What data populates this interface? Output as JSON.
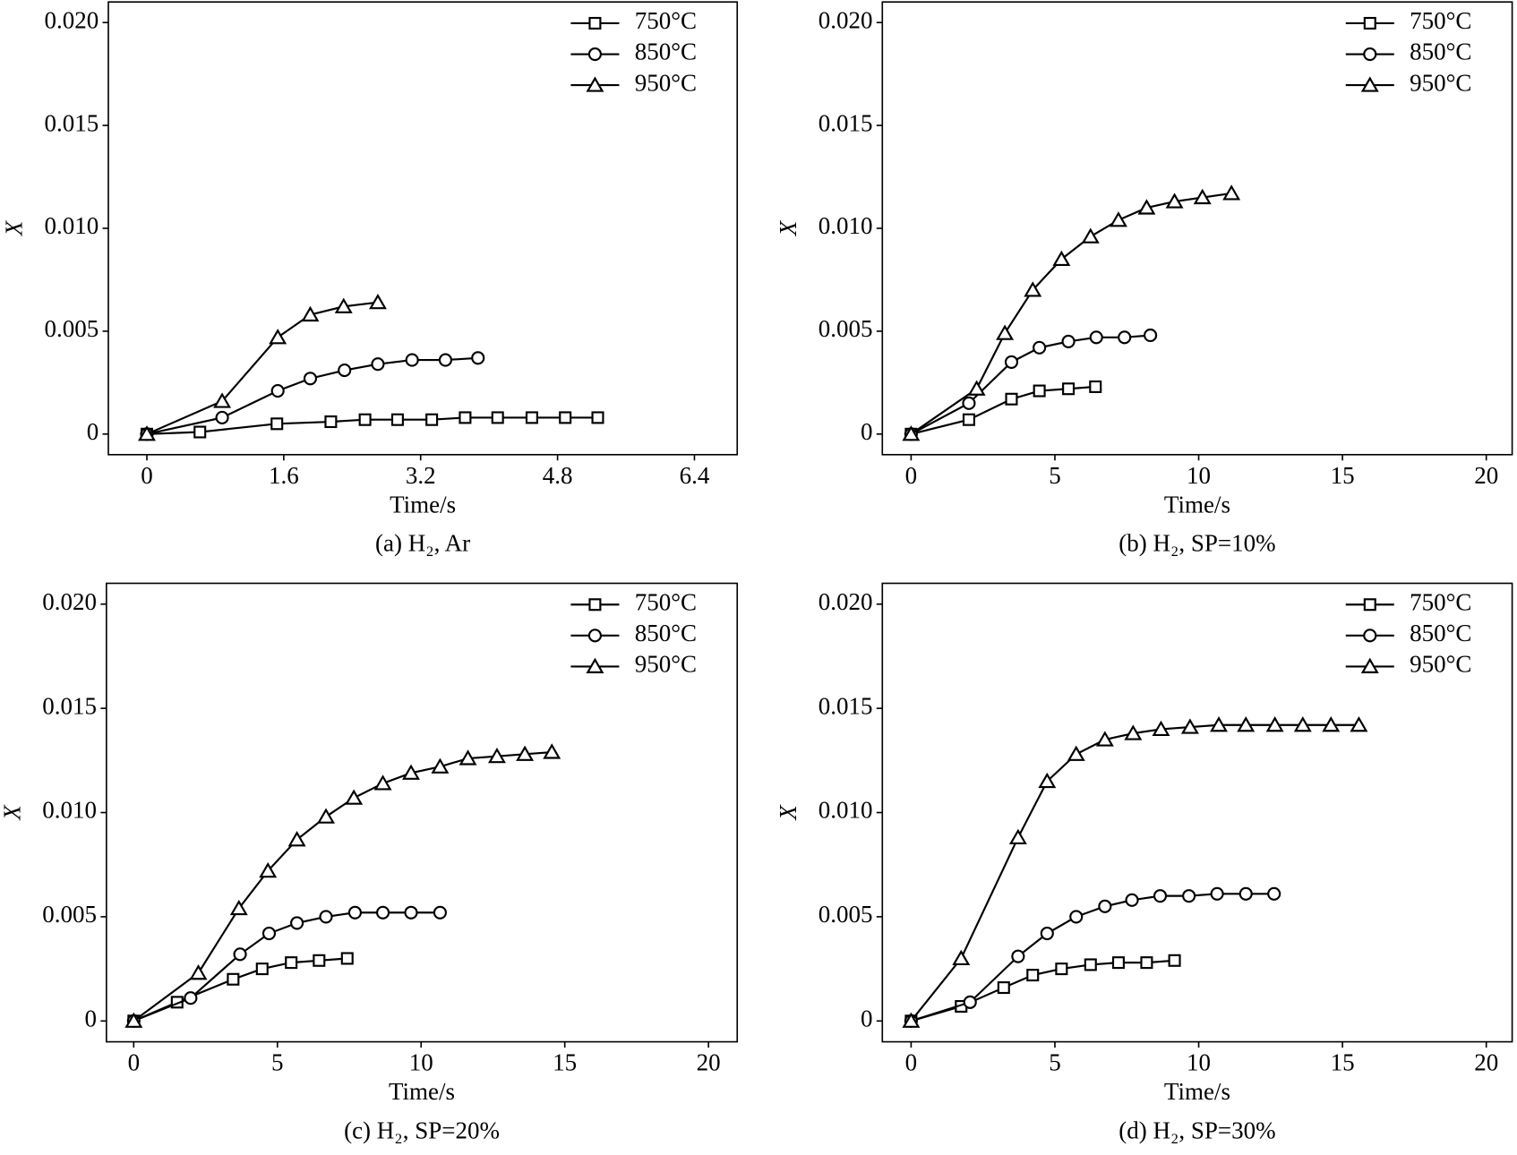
{
  "chart_data": [
    {
      "type": "line",
      "title": "(a) H₂, Ar",
      "x_label": "Time/s",
      "y_label": "X",
      "legend": "upper right",
      "xlim": [
        -0.45,
        6.9
      ],
      "xticks": [
        0,
        1.6,
        3.2,
        4.8,
        6.4
      ],
      "ylim": [
        -0.001,
        0.021
      ],
      "yticks": [
        0,
        0.005,
        {
          "value": 0.01,
          "label": "0.010"
        },
        0.015,
        {
          "value": 0.02,
          "label": "0.020"
        }
      ],
      "series": [
        {
          "name": "750°C",
          "color": "#000000",
          "marker": "square",
          "x": [
            0,
            0.62,
            1.52,
            2.15,
            2.55,
            2.93,
            3.33,
            3.72,
            4.1,
            4.5,
            4.89,
            5.27
          ],
          "values": [
            0,
            0.0001,
            0.0005,
            0.0006,
            0.0007,
            0.0007,
            0.0007,
            0.0008,
            0.0008,
            0.0008,
            0.0008,
            0.0008
          ]
        },
        {
          "name": "850°C",
          "color": "#000000",
          "marker": "circle",
          "x": [
            0,
            0.88,
            1.53,
            1.91,
            2.31,
            2.7,
            3.1,
            3.49,
            3.87
          ],
          "values": [
            0,
            0.0008,
            0.0021,
            0.0027,
            0.0031,
            0.0034,
            0.0036,
            0.0036,
            0.0037
          ]
        },
        {
          "name": "950°C",
          "color": "#000000",
          "marker": "triangle",
          "x": [
            0,
            0.88,
            1.53,
            1.91,
            2.3,
            2.7
          ],
          "values": [
            0,
            0.0016,
            0.0047,
            0.0058,
            0.0062,
            0.0064
          ]
        }
      ]
    },
    {
      "type": "line",
      "title": "(b) H₂, SP=10%",
      "x_label": "Time/s",
      "y_label": "X",
      "legend": "upper right",
      "xlim": [
        -1,
        20.9
      ],
      "xticks": [
        0,
        5,
        10,
        15,
        20
      ],
      "ylim": [
        -0.001,
        0.021
      ],
      "yticks": [
        0,
        0.005,
        {
          "value": 0.01,
          "label": "0.010"
        },
        0.015,
        {
          "value": 0.02,
          "label": "0.020"
        }
      ],
      "series": [
        {
          "name": "750°C",
          "color": "#000000",
          "marker": "square",
          "x": [
            0,
            2.01,
            3.49,
            4.46,
            5.47,
            6.41
          ],
          "values": [
            0,
            0.0007,
            0.0017,
            0.0021,
            0.0022,
            0.0023
          ]
        },
        {
          "name": "850°C",
          "color": "#000000",
          "marker": "circle",
          "x": [
            0,
            2.01,
            3.49,
            4.46,
            5.47,
            6.44,
            7.42,
            8.32
          ],
          "values": [
            0,
            0.0015,
            0.0035,
            0.0042,
            0.0045,
            0.0047,
            0.0047,
            0.0048
          ]
        },
        {
          "name": "950°C",
          "color": "#000000",
          "marker": "triangle",
          "x": [
            0,
            2.28,
            3.26,
            4.23,
            5.23,
            6.24,
            7.21,
            8.19,
            9.16,
            10.13,
            11.14
          ],
          "values": [
            0,
            0.0022,
            0.0049,
            0.007,
            0.0085,
            0.0096,
            0.0104,
            0.011,
            0.0113,
            0.0115,
            0.0117
          ]
        }
      ]
    },
    {
      "type": "line",
      "title": "(c) H₂, SP=20%",
      "x_label": "Time/s",
      "y_label": "X",
      "legend": "upper right",
      "xlim": [
        -0.95,
        21
      ],
      "xticks": [
        0,
        5,
        10,
        15,
        20
      ],
      "ylim": [
        -0.001,
        0.021
      ],
      "yticks": [
        0,
        0.005,
        {
          "value": 0.01,
          "label": "0.010"
        },
        0.015,
        {
          "value": 0.02,
          "label": "0.020"
        }
      ],
      "series": [
        {
          "name": "750°C",
          "color": "#000000",
          "marker": "square",
          "x": [
            0,
            1.51,
            3.46,
            4.47,
            5.48,
            6.45,
            7.43
          ],
          "values": [
            0,
            0.0009,
            0.002,
            0.0025,
            0.0028,
            0.0029,
            0.003
          ]
        },
        {
          "name": "850°C",
          "color": "#000000",
          "marker": "circle",
          "x": [
            0,
            1.98,
            3.7,
            4.71,
            5.68,
            6.69,
            7.7,
            8.67,
            9.65,
            10.66
          ],
          "values": [
            0,
            0.0011,
            0.0032,
            0.0042,
            0.0047,
            0.005,
            0.0052,
            0.0052,
            0.0052,
            0.0052
          ]
        },
        {
          "name": "950°C",
          "color": "#000000",
          "marker": "triangle",
          "x": [
            0,
            2.25,
            3.66,
            4.67,
            5.68,
            6.69,
            7.66,
            8.67,
            9.65,
            10.66,
            11.63,
            12.64,
            13.61,
            14.55
          ],
          "values": [
            0,
            0.0023,
            0.0054,
            0.0072,
            0.0087,
            0.0098,
            0.0107,
            0.0114,
            0.0119,
            0.0122,
            0.0126,
            0.0127,
            0.0128,
            0.0129
          ]
        }
      ]
    },
    {
      "type": "line",
      "title": "(d) H₂, SP=30%",
      "x_label": "Time/s",
      "y_label": "X",
      "legend": "upper right",
      "xlim": [
        -1,
        20.9
      ],
      "xticks": [
        0,
        5,
        10,
        15,
        20
      ],
      "ylim": [
        -0.001,
        0.021
      ],
      "yticks": [
        0,
        0.005,
        {
          "value": 0.01,
          "label": "0.010"
        },
        0.015,
        {
          "value": 0.02,
          "label": "0.020"
        }
      ],
      "series": [
        {
          "name": "750°C",
          "color": "#000000",
          "marker": "square",
          "x": [
            0,
            1.74,
            3.22,
            4.23,
            5.23,
            6.24,
            7.21,
            8.19,
            9.16
          ],
          "values": [
            0,
            0.0007,
            0.0016,
            0.0022,
            0.0025,
            0.0027,
            0.0028,
            0.0028,
            0.0029
          ]
        },
        {
          "name": "850°C",
          "color": "#000000",
          "marker": "circle",
          "x": [
            0,
            2.05,
            3.72,
            4.73,
            5.74,
            6.74,
            7.68,
            8.66,
            9.66,
            10.64,
            11.64,
            12.62
          ],
          "values": [
            0,
            0.0009,
            0.0031,
            0.0042,
            0.005,
            0.0055,
            0.0058,
            0.006,
            0.006,
            0.0061,
            0.0061,
            0.0061
          ]
        },
        {
          "name": "950°C",
          "color": "#000000",
          "marker": "triangle",
          "x": [
            0,
            1.74,
            3.72,
            4.73,
            5.74,
            6.74,
            7.72,
            8.69,
            9.7,
            10.7,
            11.64,
            12.65,
            13.62,
            14.6,
            15.57
          ],
          "values": [
            0,
            0.003,
            0.0088,
            0.0115,
            0.0128,
            0.0135,
            0.0138,
            0.014,
            0.0141,
            0.0142,
            0.0142,
            0.0142,
            0.0142,
            0.0142,
            0.0142
          ]
        }
      ]
    }
  ]
}
